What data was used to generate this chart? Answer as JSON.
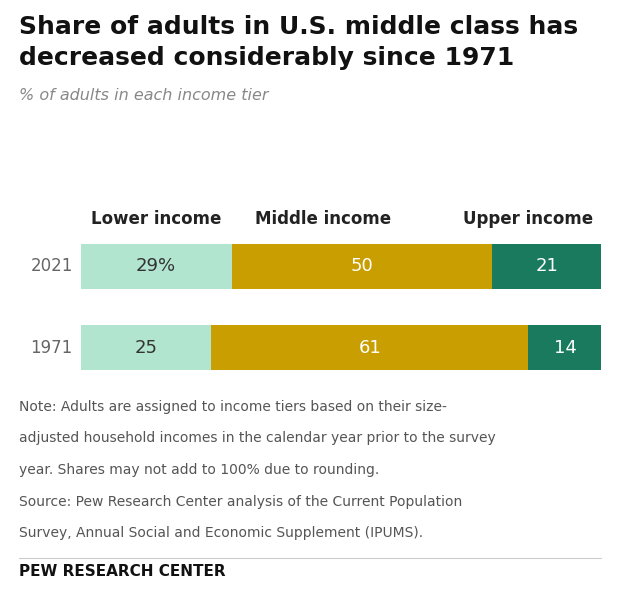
{
  "title_line1": "Share of adults in U.S. middle class has",
  "title_line2": "decreased considerably since 1971",
  "subtitle": "% of adults in each income tier",
  "years": [
    "2021",
    "1971"
  ],
  "col_header_labels": [
    "Lower income",
    "Middle income",
    "Upper income"
  ],
  "values": [
    [
      29,
      50,
      21
    ],
    [
      25,
      61,
      14
    ]
  ],
  "bar_labels": [
    [
      "29%",
      "50",
      "21"
    ],
    [
      "25",
      "61",
      "14"
    ]
  ],
  "colors": [
    "#b2e5d0",
    "#c89e00",
    "#1a7a5e"
  ],
  "label_colors": [
    "#333333",
    "#ffffff",
    "#ffffff"
  ],
  "note_line1": "Note: Adults are assigned to income tiers based on their size-",
  "note_line2": "adjusted household incomes in the calendar year prior to the survey",
  "note_line3": "year. Shares may not add to 100% due to rounding.",
  "note_line4": "Source: Pew Research Center analysis of the Current Population",
  "note_line5": "Survey, Annual Social and Economic Supplement (IPUMS).",
  "source_label": "PEW RESEARCH CENTER",
  "background_color": "#ffffff"
}
